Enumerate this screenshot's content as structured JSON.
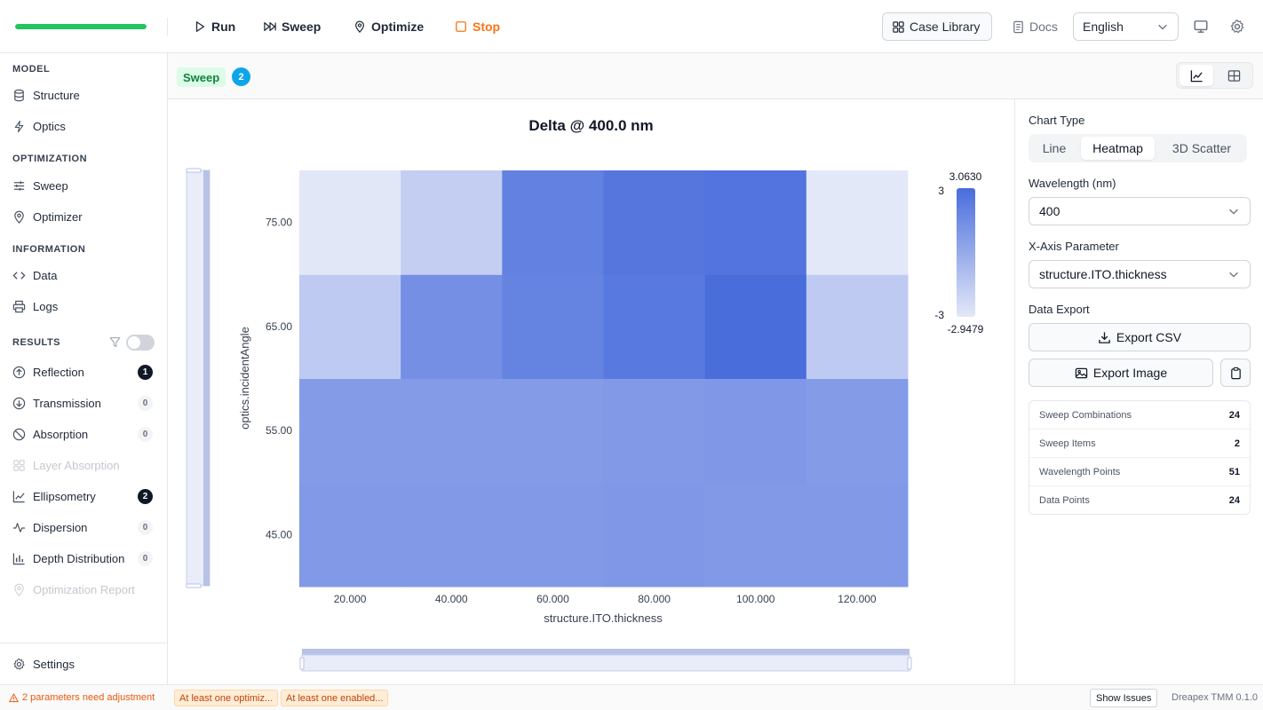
{
  "toolbar": {
    "progress_fraction": 1.0,
    "run_label": "Run",
    "sweep_label": "Sweep",
    "optimize_label": "Optimize",
    "stop_label": "Stop",
    "case_library_label": "Case Library",
    "docs_label": "Docs",
    "language": "English"
  },
  "sidebar": {
    "sections": {
      "model": "MODEL",
      "optimization": "OPTIMIZATION",
      "information": "INFORMATION",
      "results": "RESULTS"
    },
    "items": {
      "structure": "Structure",
      "optics": "Optics",
      "sweep": "Sweep",
      "optimizer": "Optimizer",
      "data": "Data",
      "logs": "Logs",
      "reflection": "Reflection",
      "transmission": "Transmission",
      "absorption": "Absorption",
      "layer_absorption": "Layer Absorption",
      "ellipsometry": "Ellipsometry",
      "dispersion": "Dispersion",
      "depth_distribution": "Depth Distribution",
      "optimization_report": "Optimization Report",
      "settings": "Settings"
    },
    "badges": {
      "reflection": "1",
      "transmission": "0",
      "absorption": "0",
      "ellipsometry": "2",
      "dispersion": "0",
      "depth_distribution": "0"
    }
  },
  "main": {
    "tag": "Sweep",
    "tag_count": "2"
  },
  "chart_data": {
    "type": "heatmap",
    "title": "Delta @ 400.0 nm",
    "xlabel": "structure.ITO.thickness",
    "ylabel": "optics.incidentAngle",
    "x": [
      20,
      40,
      60,
      80,
      100,
      120
    ],
    "x_tick_labels": [
      "20.000",
      "40.000",
      "60.000",
      "80.000",
      "100.000",
      "120.000"
    ],
    "y": [
      45,
      55,
      65,
      75
    ],
    "y_tick_labels": [
      "45.00",
      "55.00",
      "65.00",
      "75.00"
    ],
    "z": [
      [
        0.9,
        0.9,
        0.9,
        1.0,
        0.9,
        0.9
      ],
      [
        0.8,
        0.8,
        0.8,
        0.9,
        1.0,
        0.8
      ],
      [
        -1.5,
        1.4,
        2.0,
        2.5,
        3.06,
        -1.5
      ],
      [
        -2.9,
        -1.7,
        2.1,
        2.6,
        2.7,
        -2.95
      ]
    ],
    "zmin": -2.9479,
    "zmax": 3.063,
    "colorbar_max_label": "3.0630",
    "colorbar_min_label": "-2.9479",
    "colorbar_ticks": [
      "3",
      "-3"
    ]
  },
  "panel": {
    "chart_type_label": "Chart Type",
    "chart_types": [
      "Line",
      "Heatmap",
      "3D Scatter"
    ],
    "active_chart_type": "Heatmap",
    "wavelength_label": "Wavelength (nm)",
    "wavelength_value": "400",
    "xaxis_label": "X-Axis Parameter",
    "xaxis_value": "structure.ITO.thickness",
    "export_label": "Data Export",
    "export_csv": "Export CSV",
    "export_image": "Export Image",
    "stats": [
      {
        "label": "Sweep Combinations",
        "value": "24"
      },
      {
        "label": "Sweep Items",
        "value": "2"
      },
      {
        "label": "Wavelength Points",
        "value": "51"
      },
      {
        "label": "Data Points",
        "value": "24"
      }
    ]
  },
  "footer": {
    "warning": "2 parameters need adjustment",
    "chip1": "At least one optimiz...",
    "chip2": "At least one enabled...",
    "show_issues": "Show Issues",
    "version": "Dreapex TMM 0.1.0"
  },
  "colors": {
    "accent_green": "#22c55e",
    "stop_orange": "#f97316",
    "heat_low": "#dde3f7",
    "heat_high": "#4a6ddc"
  }
}
